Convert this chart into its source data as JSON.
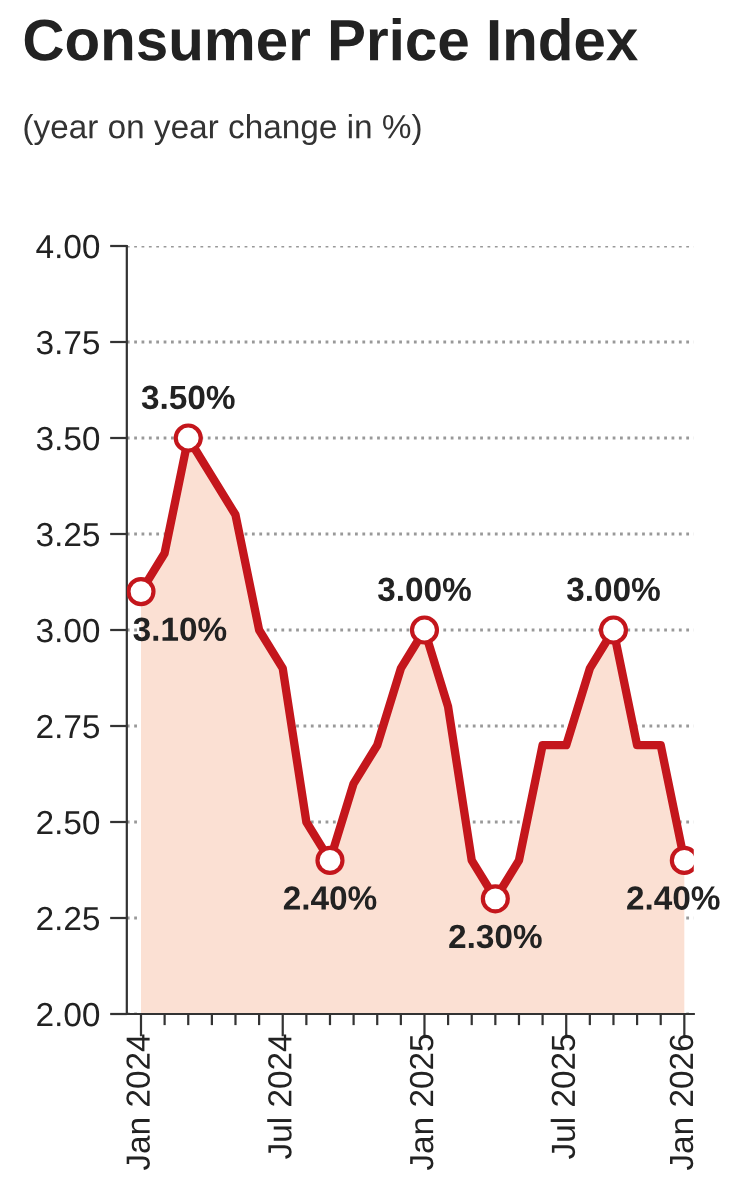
{
  "chart_data": {
    "type": "area",
    "title": "Consumer Price Index",
    "subtitle": "(year on year change in %)",
    "categories": [
      "Jan 2024",
      null,
      null,
      null,
      null,
      null,
      "Jul 2024",
      null,
      null,
      null,
      null,
      null,
      "Jan 2025",
      null,
      null,
      null,
      null,
      null,
      "Jul 2025",
      null,
      null,
      null,
      null,
      "Jan 2026"
    ],
    "series": [
      {
        "color": "#c4161c",
        "values": [
          3.1,
          3.2,
          3.5,
          3.4,
          3.3,
          3.0,
          2.9,
          2.5,
          2.4,
          2.6,
          2.7,
          2.9,
          3.0,
          2.8,
          2.4,
          2.3,
          2.4,
          2.7,
          2.7,
          2.9,
          3.0,
          2.7,
          2.7,
          2.4
        ],
        "value_labels": [
          "3.10%",
          null,
          "3.50%",
          null,
          null,
          null,
          null,
          null,
          "2.40%",
          null,
          null,
          null,
          "3.00%",
          null,
          null,
          "2.30%",
          null,
          null,
          null,
          null,
          "3.00%",
          null,
          null,
          "2.40%"
        ]
      }
    ],
    "ylim": [
      2.0,
      4.0
    ],
    "yticks": [
      {
        "value": 2.0,
        "label": "2.00"
      },
      {
        "value": 2.25,
        "label": "2.25"
      },
      {
        "value": 2.5,
        "label": "2.50"
      },
      {
        "value": 2.75,
        "label": "2.75"
      },
      {
        "value": 3.0,
        "label": "3.00"
      },
      {
        "value": 3.25,
        "label": "3.25"
      },
      {
        "value": 3.5,
        "label": "3.50"
      },
      {
        "value": 3.75,
        "label": "3.75"
      },
      {
        "value": 4.0,
        "label": "4.00"
      }
    ],
    "grid": "y",
    "line_style": "solid"
  }
}
